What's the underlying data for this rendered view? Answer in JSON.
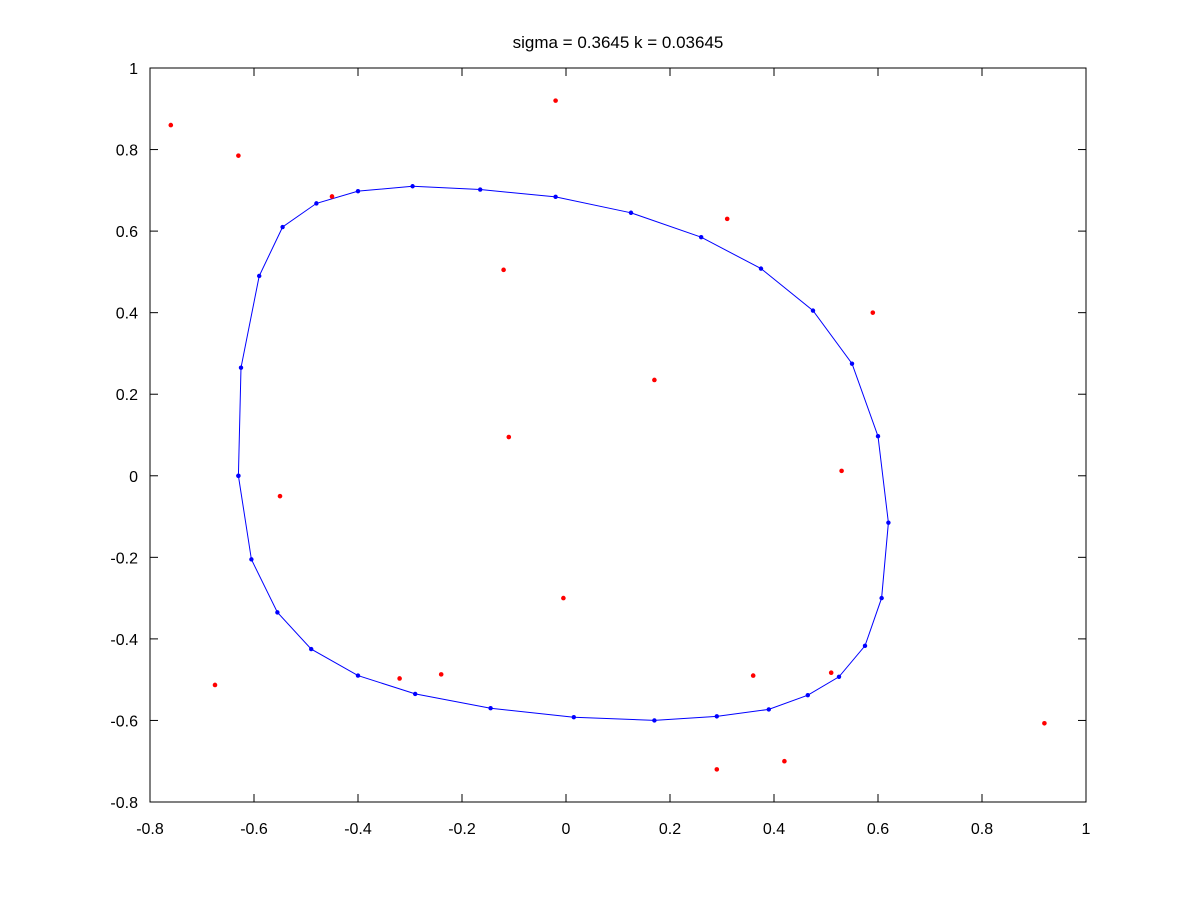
{
  "chart_data": {
    "type": "scatter",
    "title": "sigma = 0.3645 k = 0.03645",
    "xlabel": "",
    "ylabel": "",
    "xlim": [
      -0.8,
      1
    ],
    "ylim": [
      -0.8,
      1
    ],
    "xticks": [
      "-0.8",
      "-0.6",
      "-0.4",
      "-0.2",
      "0",
      "0.2",
      "0.4",
      "0.6",
      "0.8",
      "1"
    ],
    "yticks": [
      "-0.8",
      "-0.6",
      "-0.4",
      "-0.2",
      "0",
      "0.2",
      "0.4",
      "0.6",
      "0.8",
      "1"
    ],
    "grid": false,
    "colors": {
      "points": "#ff0000",
      "contour": "#0000ff"
    },
    "series": [
      {
        "style": "red points",
        "points": [
          [
            -0.76,
            0.86
          ],
          [
            -0.63,
            0.785
          ],
          [
            -0.02,
            0.92
          ],
          [
            -0.45,
            0.685
          ],
          [
            0.31,
            0.63
          ],
          [
            -0.12,
            0.505
          ],
          [
            0.59,
            0.4
          ],
          [
            0.17,
            0.235
          ],
          [
            -0.11,
            0.095
          ],
          [
            0.53,
            0.012
          ],
          [
            -0.55,
            -0.05
          ],
          [
            -0.005,
            -0.3
          ],
          [
            -0.675,
            -0.513
          ],
          [
            -0.32,
            -0.497
          ],
          [
            -0.24,
            -0.487
          ],
          [
            0.36,
            -0.49
          ],
          [
            0.51,
            -0.483
          ],
          [
            0.92,
            -0.607
          ],
          [
            0.29,
            -0.72
          ],
          [
            0.42,
            -0.7
          ]
        ]
      },
      {
        "style": "blue line with markers",
        "closed": true,
        "points": [
          [
            -0.63,
            0.0
          ],
          [
            -0.625,
            0.265
          ],
          [
            -0.59,
            0.49
          ],
          [
            -0.545,
            0.61
          ],
          [
            -0.48,
            0.668
          ],
          [
            -0.4,
            0.698
          ],
          [
            -0.295,
            0.71
          ],
          [
            -0.165,
            0.702
          ],
          [
            -0.02,
            0.684
          ],
          [
            0.125,
            0.645
          ],
          [
            0.26,
            0.585
          ],
          [
            0.375,
            0.508
          ],
          [
            0.475,
            0.405
          ],
          [
            0.55,
            0.275
          ],
          [
            0.6,
            0.097
          ],
          [
            0.62,
            -0.115
          ],
          [
            0.607,
            -0.3
          ],
          [
            0.575,
            -0.417
          ],
          [
            0.525,
            -0.493
          ],
          [
            0.465,
            -0.538
          ],
          [
            0.39,
            -0.573
          ],
          [
            0.29,
            -0.59
          ],
          [
            0.17,
            -0.6
          ],
          [
            0.015,
            -0.592
          ],
          [
            -0.145,
            -0.57
          ],
          [
            -0.29,
            -0.535
          ],
          [
            -0.4,
            -0.49
          ],
          [
            -0.49,
            -0.425
          ],
          [
            -0.555,
            -0.335
          ],
          [
            -0.605,
            -0.205
          ],
          [
            -0.63,
            0.0
          ]
        ]
      }
    ]
  }
}
